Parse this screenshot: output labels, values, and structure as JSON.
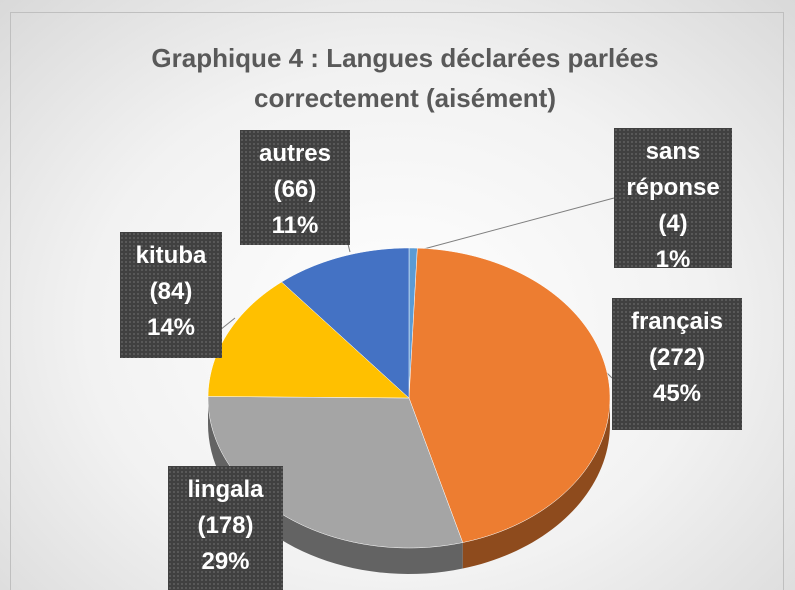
{
  "chart_data": {
    "type": "pie3d",
    "title": "Graphique 4 : Langues déclarées parlées correctement (aisément)",
    "categories": [
      "sans réponse",
      "français",
      "lingala",
      "kituba",
      "autres"
    ],
    "values": [
      4,
      272,
      178,
      84,
      66
    ],
    "value_labels": [
      "(4)",
      "(272)",
      "(178)",
      "(84)",
      "(66)"
    ],
    "percent_labels": [
      "1%",
      "45%",
      "29%",
      "14%",
      "11%"
    ],
    "colors": [
      "#5b9bd5",
      "#ed7d31",
      "#a5a5a5",
      "#ffc000",
      "#4472c4"
    ]
  }
}
